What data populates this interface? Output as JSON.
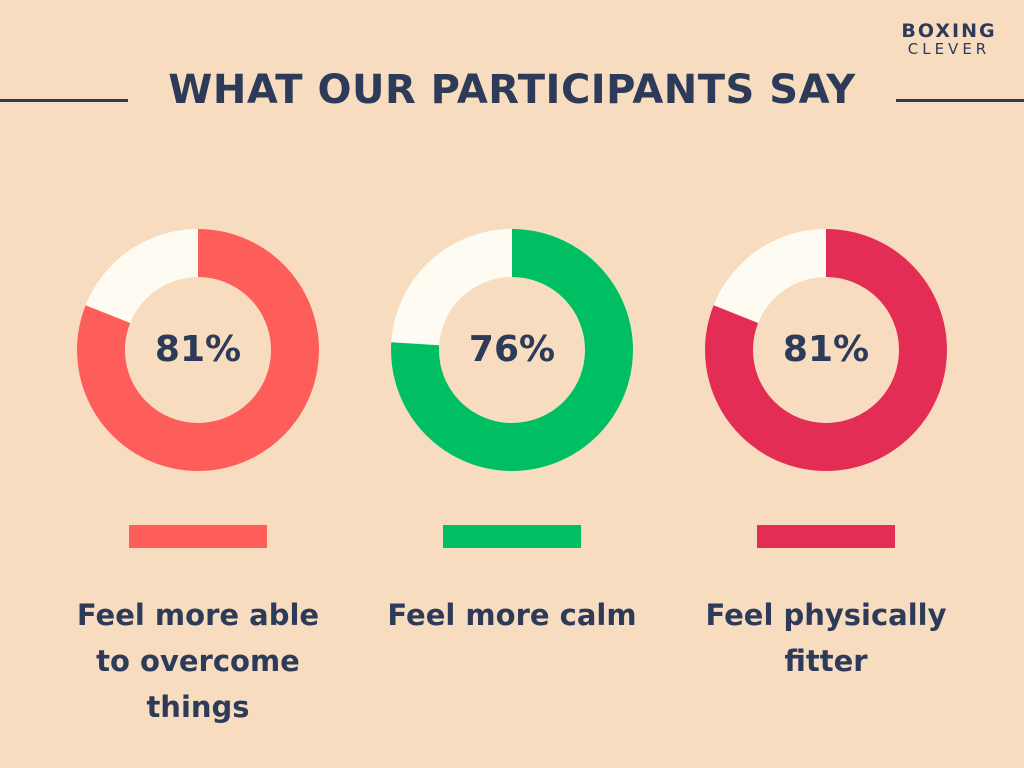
{
  "logo": {
    "line1": "BOXING",
    "line2": "CLEVER"
  },
  "header": {
    "title": "WHAT OUR PARTICIPANTS SAY"
  },
  "chart_data": [
    {
      "type": "pie",
      "donut": true,
      "value": 81,
      "value_label": "81%",
      "label": "Feel more able to overcome things",
      "color": "#fd5e5a",
      "remainder_color": "#fefbf3"
    },
    {
      "type": "pie",
      "donut": true,
      "value": 76,
      "value_label": "76%",
      "label": "Feel more calm",
      "color": "#00bf63",
      "remainder_color": "#fefbf3"
    },
    {
      "type": "pie",
      "donut": true,
      "value": 81,
      "value_label": "81%",
      "label": "Feel physically fitter",
      "color": "#e32d54",
      "remainder_color": "#fefbf3"
    }
  ]
}
